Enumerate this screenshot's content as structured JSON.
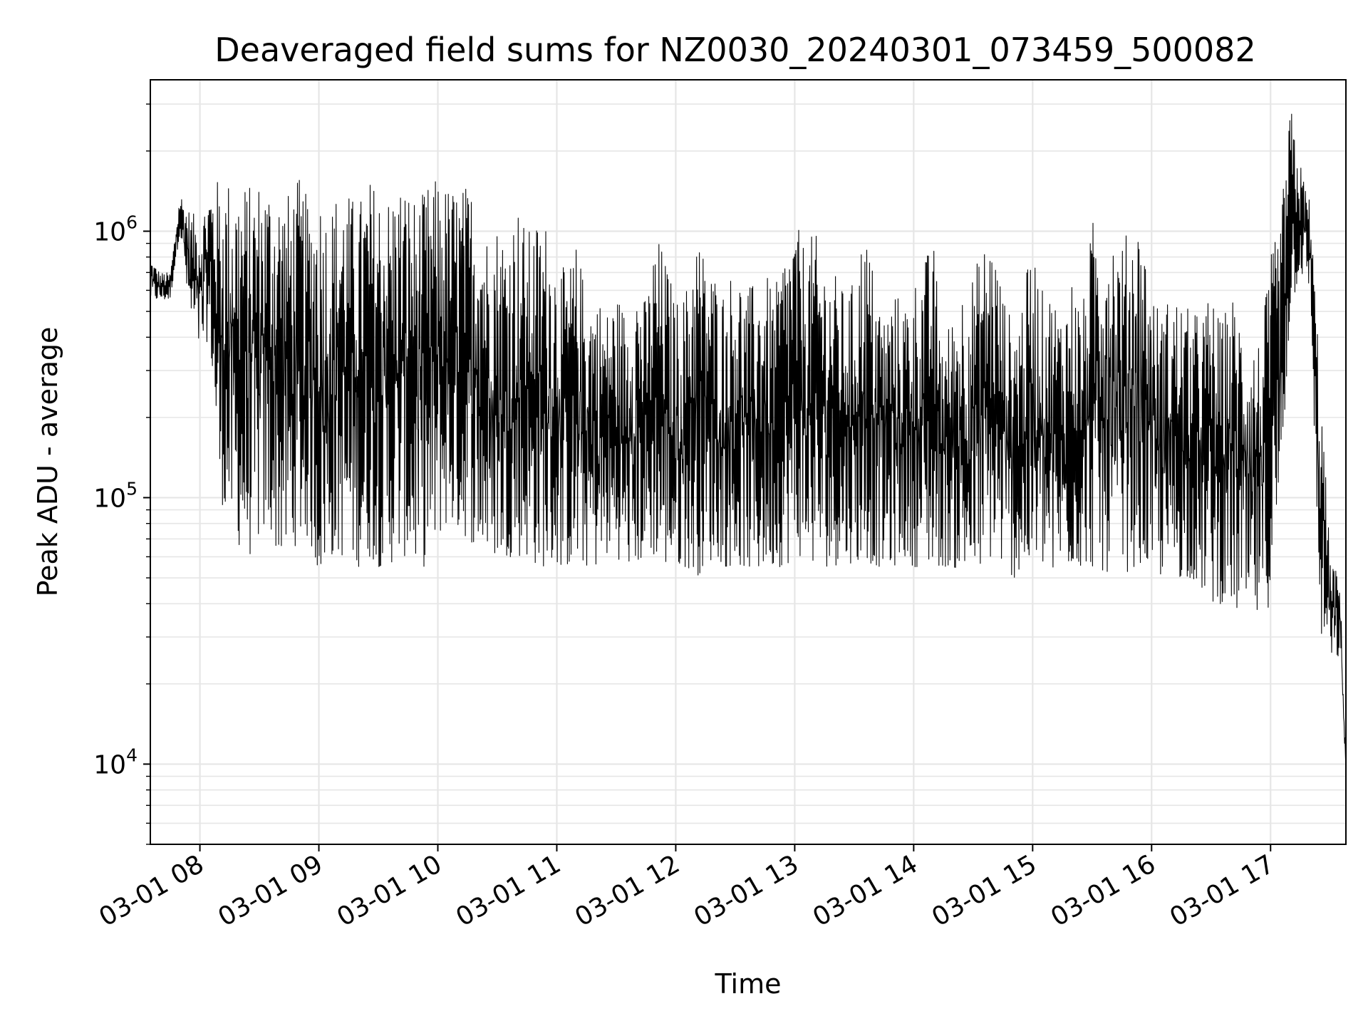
{
  "chart_data": {
    "type": "line",
    "title": "Deaveraged field sums for NZ0030_20240301_073459_500082",
    "xlabel": "Time",
    "ylabel": "Peak ADU - average",
    "yscale": "log",
    "grid": true,
    "line_color": "#000000",
    "grid_color": "#e6e6e6",
    "xlim": [
      "03-01 07:35",
      "03-01 17:38"
    ],
    "ylim": [
      5000,
      3700000
    ],
    "x_ticks": [
      "03-01 08",
      "03-01 09",
      "03-01 10",
      "03-01 11",
      "03-01 12",
      "03-01 13",
      "03-01 14",
      "03-01 15",
      "03-01 16",
      "03-01 17"
    ],
    "y_ticks": [
      {
        "base": "10",
        "exp": "4",
        "value": 10000
      },
      {
        "base": "10",
        "exp": "5",
        "value": 100000
      },
      {
        "base": "10",
        "exp": "6",
        "value": 1000000
      }
    ],
    "series": [
      {
        "x": [
          "03-01 07:35",
          "03-01 07:40",
          "03-01 07:45",
          "03-01 07:50",
          "03-01 07:55",
          "03-01 08:00",
          "03-01 08:05",
          "03-01 08:10",
          "03-01 08:15",
          "03-01 08:20",
          "03-01 08:25",
          "03-01 08:30",
          "03-01 08:35",
          "03-01 08:40",
          "03-01 08:45",
          "03-01 08:50",
          "03-01 08:55",
          "03-01 09:00",
          "03-01 09:05",
          "03-01 09:10",
          "03-01 09:15",
          "03-01 09:20",
          "03-01 09:25",
          "03-01 09:30",
          "03-01 09:35",
          "03-01 09:40",
          "03-01 09:45",
          "03-01 09:50",
          "03-01 09:55",
          "03-01 10:00",
          "03-01 10:05",
          "03-01 10:10",
          "03-01 10:15",
          "03-01 10:20",
          "03-01 10:25",
          "03-01 10:30",
          "03-01 10:35",
          "03-01 10:40",
          "03-01 10:45",
          "03-01 10:50",
          "03-01 10:55",
          "03-01 11:00",
          "03-01 11:05",
          "03-01 11:10",
          "03-01 11:15",
          "03-01 11:20",
          "03-01 11:25",
          "03-01 11:30",
          "03-01 11:35",
          "03-01 11:40",
          "03-01 11:45",
          "03-01 11:50",
          "03-01 11:55",
          "03-01 12:00",
          "03-01 12:05",
          "03-01 12:10",
          "03-01 12:15",
          "03-01 12:20",
          "03-01 12:25",
          "03-01 12:30",
          "03-01 12:35",
          "03-01 12:40",
          "03-01 12:45",
          "03-01 12:50",
          "03-01 12:55",
          "03-01 13:00",
          "03-01 13:05",
          "03-01 13:10",
          "03-01 13:15",
          "03-01 13:20",
          "03-01 13:25",
          "03-01 13:30",
          "03-01 13:35",
          "03-01 13:40",
          "03-01 13:45",
          "03-01 13:50",
          "03-01 13:55",
          "03-01 14:00",
          "03-01 14:05",
          "03-01 14:10",
          "03-01 14:15",
          "03-01 14:20",
          "03-01 14:25",
          "03-01 14:30",
          "03-01 14:35",
          "03-01 14:40",
          "03-01 14:45",
          "03-01 14:50",
          "03-01 14:55",
          "03-01 15:00",
          "03-01 15:05",
          "03-01 15:10",
          "03-01 15:15",
          "03-01 15:20",
          "03-01 15:25",
          "03-01 15:30",
          "03-01 15:35",
          "03-01 15:40",
          "03-01 15:45",
          "03-01 15:50",
          "03-01 15:55",
          "03-01 16:00",
          "03-01 16:05",
          "03-01 16:10",
          "03-01 16:15",
          "03-01 16:20",
          "03-01 16:25",
          "03-01 16:30",
          "03-01 16:35",
          "03-01 16:40",
          "03-01 16:45",
          "03-01 16:50",
          "03-01 16:55",
          "03-01 17:00",
          "03-01 17:05",
          "03-01 17:10",
          "03-01 17:15",
          "03-01 17:20",
          "03-01 17:25",
          "03-01 17:30",
          "03-01 17:35",
          "03-01 17:38"
        ],
        "upper": [
          800000,
          700000,
          700000,
          1400000,
          1200000,
          1100000,
          1500000,
          1600000,
          1600000,
          1600000,
          1500000,
          1600000,
          1600000,
          1500000,
          1400000,
          1600000,
          1300000,
          1500000,
          1200000,
          1500000,
          1400000,
          1300000,
          1600000,
          1500000,
          1400000,
          1600000,
          1500000,
          1300000,
          1500000,
          1600000,
          1500000,
          1500000,
          1500000,
          1500000,
          1000000,
          1100000,
          1000000,
          1300000,
          1000000,
          1100000,
          1100000,
          800000,
          700000,
          900000,
          600000,
          600000,
          500000,
          600000,
          500000,
          700000,
          550000,
          1000000,
          800000,
          550000,
          600000,
          1100000,
          800000,
          700000,
          600000,
          800000,
          600000,
          650000,
          700000,
          600000,
          900000,
          1100000,
          900000,
          1000000,
          800000,
          700000,
          600000,
          650000,
          1100000,
          700000,
          500000,
          600000,
          550000,
          650000,
          800000,
          900000,
          400000,
          500000,
          650000,
          700000,
          900000,
          1000000,
          600000,
          450000,
          600000,
          900000,
          600000,
          600000,
          500000,
          700000,
          500000,
          1100000,
          1200000,
          1100000,
          900000,
          1100000,
          1100000,
          600000,
          500000,
          600000,
          550000,
          500000,
          500000,
          600000,
          450000,
          600000,
          500000,
          400000,
          400000,
          800000,
          1100000,
          3000000,
          1800000,
          1300000,
          300000,
          60000,
          50000,
          10000
        ],
        "lower": [
          550000,
          550000,
          550000,
          1000000,
          450000,
          350000,
          400000,
          100000,
          80000,
          65000,
          60000,
          70000,
          75000,
          60000,
          60000,
          70000,
          70000,
          50000,
          60000,
          60000,
          60000,
          55000,
          60000,
          55000,
          55000,
          60000,
          60000,
          55000,
          55000,
          70000,
          80000,
          75000,
          70000,
          65000,
          60000,
          60000,
          60000,
          60000,
          60000,
          55000,
          55000,
          55000,
          55000,
          55000,
          55000,
          55000,
          60000,
          60000,
          55000,
          55000,
          60000,
          60000,
          55000,
          55000,
          55000,
          50000,
          55000,
          60000,
          55000,
          55000,
          55000,
          50000,
          55000,
          55000,
          55000,
          60000,
          60000,
          55000,
          55000,
          55000,
          60000,
          55000,
          60000,
          55000,
          55000,
          55000,
          60000,
          55000,
          55000,
          55000,
          55000,
          55000,
          50000,
          50000,
          55000,
          60000,
          55000,
          50000,
          50000,
          55000,
          55000,
          50000,
          55000,
          55000,
          55000,
          55000,
          50000,
          55000,
          50000,
          55000,
          55000,
          55000,
          50000,
          50000,
          50000,
          50000,
          45000,
          40000,
          40000,
          40000,
          35000,
          35000,
          35000,
          40000,
          100000,
          500000,
          700000,
          600000,
          30000,
          25000,
          25000,
          9500
        ]
      }
    ]
  }
}
